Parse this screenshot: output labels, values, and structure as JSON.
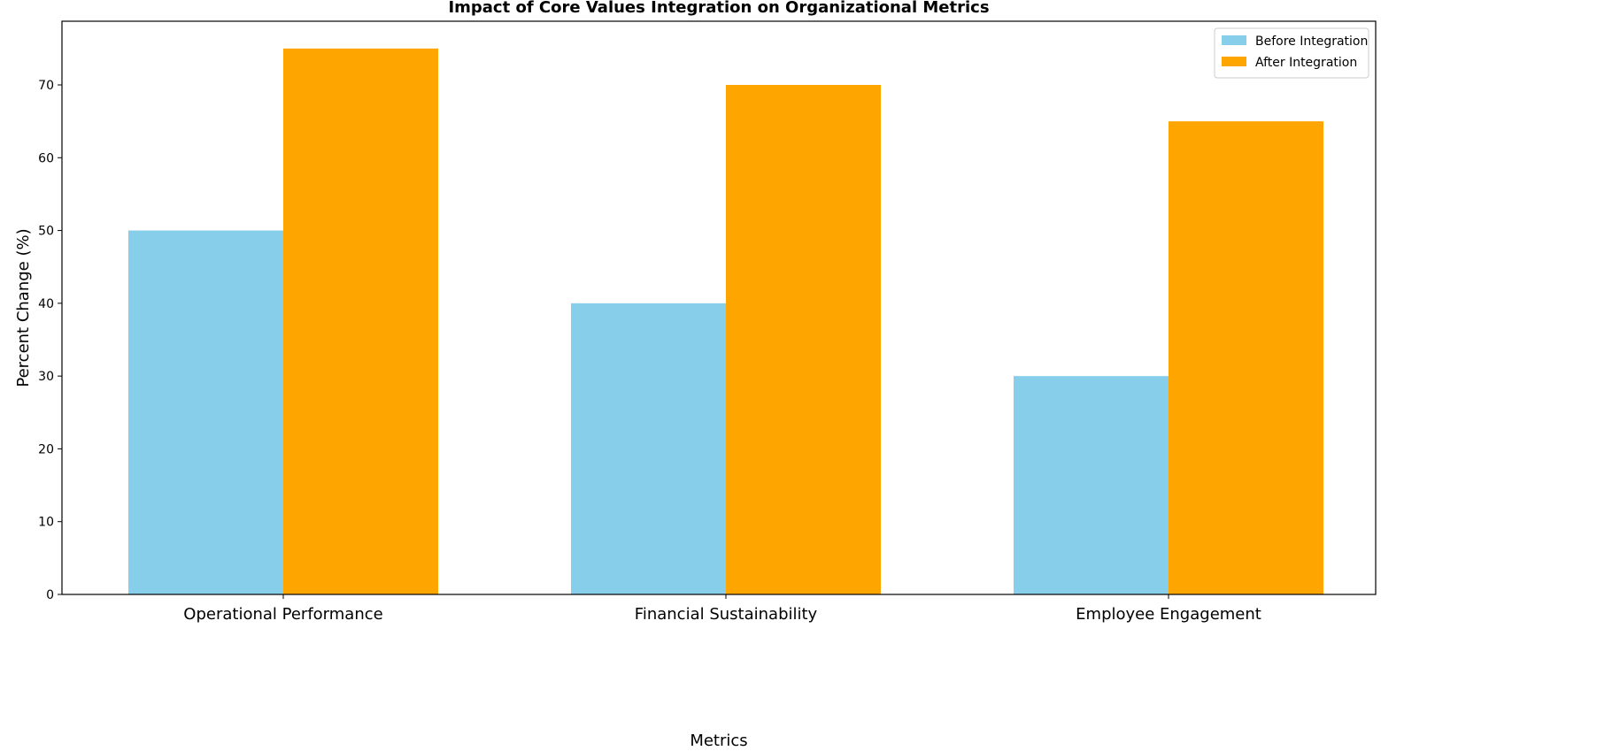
{
  "chart_data": {
    "type": "bar",
    "title": "Impact of Core Values Integration on Organizational Metrics",
    "xlabel": "Metrics",
    "ylabel": "Percent Change (%)",
    "categories": [
      "Operational Performance",
      "Financial Sustainability",
      "Employee Engagement"
    ],
    "series": [
      {
        "name": "Before Integration",
        "values": [
          50,
          40,
          30
        ],
        "color": "#87CEEB"
      },
      {
        "name": "After Integration",
        "values": [
          75,
          70,
          65
        ],
        "color": "#FFA500"
      }
    ],
    "ylim": [
      0,
      78.75
    ],
    "yticks": [
      0,
      10,
      20,
      30,
      40,
      50,
      60,
      70
    ],
    "grid": false,
    "legend": "top-right"
  }
}
